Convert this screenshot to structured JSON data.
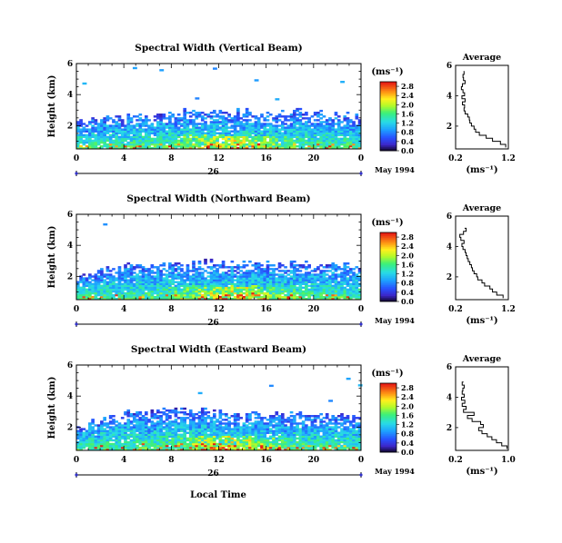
{
  "figure": {
    "xlabel": "Local Time",
    "date_label": "May 1994",
    "day_label": "26",
    "ylabel": "Height (km)",
    "unit": "(ms⁻¹)",
    "average_title": "Average"
  },
  "chart_data": [
    {
      "type": "heatmap",
      "title": "Spectral Width (Vertical Beam)",
      "xlabel": "Local Time",
      "ylabel": "Height (km)",
      "x_ticks": [
        "0",
        "4",
        "8",
        "12",
        "16",
        "20",
        "0"
      ],
      "y_ticks": [
        "2",
        "4",
        "6"
      ],
      "xlim": [
        0,
        24
      ],
      "ylim": [
        0.5,
        6
      ],
      "colorbar": {
        "label": "(ms⁻¹)",
        "ticks": [
          "0.0",
          "0.4",
          "0.8",
          "1.2",
          "1.6",
          "2.0",
          "2.4",
          "2.8"
        ],
        "range": [
          0,
          3.0
        ]
      },
      "echo_top_km": [
        2.2,
        2.4,
        2.5,
        2.4,
        2.6,
        2.8,
        2.7,
        2.6,
        2.8,
        2.9,
        3.0,
        2.8,
        2.9,
        2.8,
        2.9,
        2.8,
        2.7,
        2.8,
        2.9,
        2.7,
        2.8,
        2.7,
        2.6,
        2.5
      ],
      "average_profile": {
        "title": "Average",
        "xlabel": "(ms⁻¹)",
        "x_ticks": [
          "0.2",
          "1.2"
        ],
        "y_ticks": [
          "2",
          "4",
          "6"
        ],
        "xlim": [
          0.2,
          1.2
        ],
        "ylim": [
          0.5,
          6
        ],
        "height_km": [
          0.6,
          0.8,
          1.0,
          1.2,
          1.4,
          1.6,
          1.8,
          2.0,
          2.2,
          2.4,
          2.6,
          2.8,
          3.0,
          3.2,
          3.4,
          3.6,
          3.8,
          4.0,
          4.2,
          4.4,
          4.6,
          4.8,
          5.0,
          5.2,
          5.4,
          5.6
        ],
        "width_ms": [
          1.15,
          1.05,
          0.9,
          0.78,
          0.65,
          0.58,
          0.55,
          0.5,
          0.47,
          0.46,
          0.43,
          0.38,
          0.36,
          0.37,
          0.33,
          0.38,
          0.32,
          0.37,
          0.34,
          0.31,
          0.33,
          0.38,
          0.35,
          0.34,
          0.36,
          0.35
        ]
      }
    },
    {
      "type": "heatmap",
      "title": "Spectral Width (Northward Beam)",
      "xlabel": "Local Time",
      "ylabel": "Height (km)",
      "x_ticks": [
        "0",
        "4",
        "8",
        "12",
        "16",
        "20",
        "0"
      ],
      "y_ticks": [
        "2",
        "4",
        "6"
      ],
      "xlim": [
        0,
        24
      ],
      "ylim": [
        0.5,
        6
      ],
      "colorbar": {
        "label": "(ms⁻¹)",
        "ticks": [
          "0.0",
          "0.4",
          "0.8",
          "1.2",
          "1.6",
          "2.0",
          "2.4",
          "2.8"
        ],
        "range": [
          0,
          3.0
        ]
      },
      "echo_top_km": [
        2.0,
        2.2,
        2.4,
        2.6,
        2.7,
        2.8,
        2.6,
        2.7,
        2.9,
        2.8,
        2.8,
        2.9,
        2.9,
        2.8,
        2.8,
        2.9,
        2.8,
        2.7,
        2.8,
        2.9,
        2.8,
        2.7,
        2.7,
        2.6
      ],
      "average_profile": {
        "title": "Average",
        "xlabel": "(ms⁻¹)",
        "x_ticks": [
          "0.2",
          "1.2"
        ],
        "y_ticks": [
          "2",
          "4",
          "6"
        ],
        "xlim": [
          0.2,
          1.2
        ],
        "ylim": [
          0.5,
          6
        ],
        "height_km": [
          0.6,
          0.8,
          1.0,
          1.2,
          1.4,
          1.6,
          1.8,
          2.0,
          2.2,
          2.4,
          2.6,
          2.8,
          3.0,
          3.2,
          3.4,
          3.6,
          3.8,
          4.0,
          4.2,
          4.4,
          4.6,
          4.8,
          5.0,
          5.2
        ],
        "width_ms": [
          1.1,
          0.98,
          0.9,
          0.85,
          0.75,
          0.7,
          0.62,
          0.6,
          0.55,
          0.52,
          0.5,
          0.47,
          0.44,
          0.42,
          0.4,
          0.38,
          0.34,
          0.32,
          0.36,
          0.3,
          0.28,
          0.35,
          0.4,
          0.37
        ]
      }
    },
    {
      "type": "heatmap",
      "title": "Spectral Width (Eastward Beam)",
      "xlabel": "Local Time",
      "ylabel": "Height (km)",
      "x_ticks": [
        "0",
        "4",
        "8",
        "12",
        "16",
        "20",
        "0"
      ],
      "y_ticks": [
        "2",
        "4",
        "6"
      ],
      "xlim": [
        0,
        24
      ],
      "ylim": [
        0.5,
        6
      ],
      "colorbar": {
        "label": "(ms⁻¹)",
        "ticks": [
          "0.0",
          "0.4",
          "0.8",
          "1.2",
          "1.6",
          "2.0",
          "2.4",
          "2.8"
        ],
        "range": [
          0,
          3.0
        ]
      },
      "echo_top_km": [
        2.1,
        2.3,
        2.6,
        2.8,
        3.0,
        3.1,
        2.9,
        3.0,
        3.1,
        3.0,
        3.0,
        2.9,
        2.9,
        2.8,
        2.9,
        2.8,
        2.7,
        2.8,
        2.9,
        2.8,
        2.7,
        2.7,
        2.6,
        2.5
      ],
      "average_profile": {
        "title": "Average",
        "xlabel": "(ms⁻¹)",
        "x_ticks": [
          "0.2",
          "1.0"
        ],
        "y_ticks": [
          "2",
          "4",
          "6"
        ],
        "xlim": [
          0.2,
          1.0
        ],
        "ylim": [
          0.5,
          6
        ],
        "height_km": [
          0.6,
          0.8,
          1.0,
          1.2,
          1.4,
          1.6,
          1.8,
          2.0,
          2.2,
          2.4,
          2.6,
          2.8,
          3.0,
          3.2,
          3.4,
          3.6,
          3.8,
          4.0,
          4.2,
          4.4,
          4.6,
          4.8,
          5.0
        ],
        "width_ms": [
          0.98,
          0.9,
          0.82,
          0.75,
          0.68,
          0.6,
          0.55,
          0.62,
          0.58,
          0.45,
          0.38,
          0.48,
          0.32,
          0.36,
          0.3,
          0.34,
          0.29,
          0.33,
          0.3,
          0.31,
          0.33,
          0.3,
          0.32
        ]
      }
    }
  ]
}
